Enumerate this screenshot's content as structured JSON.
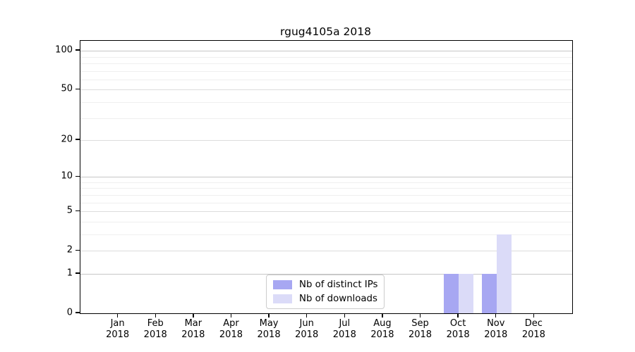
{
  "chart_data": {
    "type": "bar",
    "title": "rgug4105a 2018",
    "categories": [
      "Jan",
      "Feb",
      "Mar",
      "Apr",
      "May",
      "Jun",
      "Jul",
      "Aug",
      "Sep",
      "Oct",
      "Nov",
      "Dec"
    ],
    "category_year": "2018",
    "series": [
      {
        "name": "Nb of distinct IPs",
        "color": "#a7a7f2",
        "values": [
          0,
          0,
          0,
          0,
          0,
          0,
          0,
          0,
          0,
          1,
          1,
          0
        ]
      },
      {
        "name": "Nb of downloads",
        "color": "#dbdbf8",
        "values": [
          0,
          0,
          0,
          0,
          0,
          0,
          0,
          0,
          0,
          1,
          3,
          0
        ]
      }
    ],
    "y_scale": "log10(value+1)",
    "y_ticks": [
      0,
      1,
      2,
      5,
      10,
      20,
      50,
      100
    ],
    "y_minor_gridlines": [
      3,
      4,
      6,
      7,
      8,
      9,
      30,
      40,
      60,
      70,
      80,
      90
    ],
    "ylim": [
      0,
      115
    ],
    "grid": true,
    "legend_position": "lower center"
  },
  "colors": {
    "decade_gridline": "#c6c6c6",
    "major_gridline": "#dcdcdc",
    "minor_gridline": "#efefef",
    "axis": "#000000",
    "background": "#ffffff",
    "legend_border": "#cccccc",
    "text": "#000000"
  }
}
